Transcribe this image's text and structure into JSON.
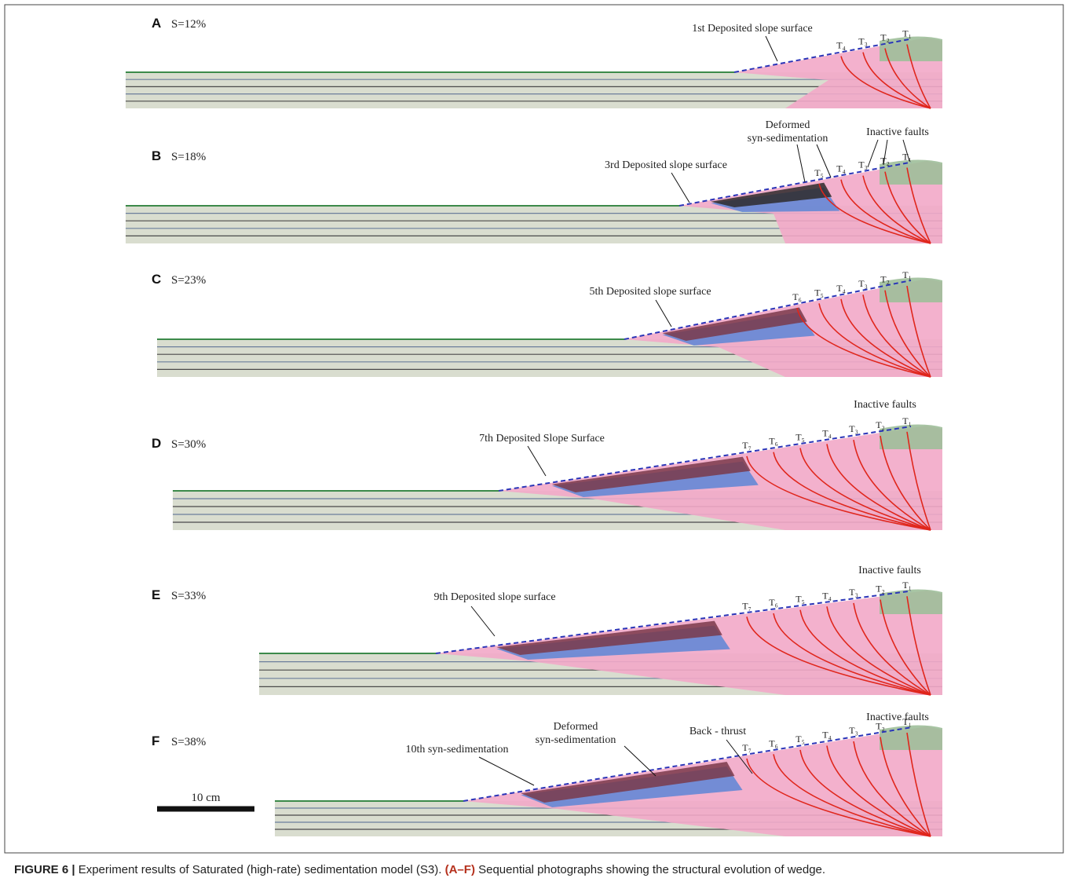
{
  "panels": [
    {
      "letter": "A",
      "strain": "S=12%",
      "annotations": [
        [
          "1st Deposited slope surface"
        ]
      ],
      "thrusts": [
        "T₄",
        "T₃",
        "T₂",
        "T₁"
      ]
    },
    {
      "letter": "B",
      "strain": "S=18%",
      "annotations": [
        [
          "3rd Deposited slope surface"
        ],
        [
          "Deformed",
          "syn-sedimentation"
        ],
        [
          "Inactive faults"
        ]
      ],
      "thrusts": [
        "T₅",
        "T₄",
        "T₃",
        "T₂",
        "T₁"
      ]
    },
    {
      "letter": "C",
      "strain": "S=23%",
      "annotations": [
        [
          "5th Deposited slope surface"
        ]
      ],
      "thrusts": [
        "T₆",
        "T₅",
        "T₄",
        "T₃",
        "T₂",
        "T₁"
      ]
    },
    {
      "letter": "D",
      "strain": "S=30%",
      "annotations": [
        [
          "7th Deposited Slope Surface"
        ],
        [
          "Inactive faults"
        ]
      ],
      "thrusts": [
        "T₇",
        "T₆",
        "T₅",
        "T₄",
        "T₃",
        "T₂",
        "T₁"
      ]
    },
    {
      "letter": "E",
      "strain": "S=33%",
      "annotations": [
        [
          "9th Deposited slope surface"
        ],
        [
          "Inactive faults"
        ]
      ],
      "thrusts": [
        "T₇",
        "T₆",
        "T₅",
        "T₄",
        "T₃",
        "T₂",
        "T₁"
      ]
    },
    {
      "letter": "F",
      "strain": "S=38%",
      "annotations": [
        [
          "10th syn-sedimentation"
        ],
        [
          "Deformed",
          "syn-sedimentation"
        ],
        [
          "Back - thrust"
        ],
        [
          "Inactive faults"
        ]
      ],
      "thrusts": [
        "T₇",
        "T₆",
        "T₅",
        "T₄",
        "T₃",
        "T₂",
        "T₁"
      ]
    }
  ],
  "scale_bar": "10 cm",
  "caption": {
    "label": "FIGURE 6 |",
    "text": " Experiment results of Saturated (high-rate) sedimentation model (S3). ",
    "range": "(A–F)",
    "rest": " Sequential photographs showing the structural evolution of wedge."
  }
}
